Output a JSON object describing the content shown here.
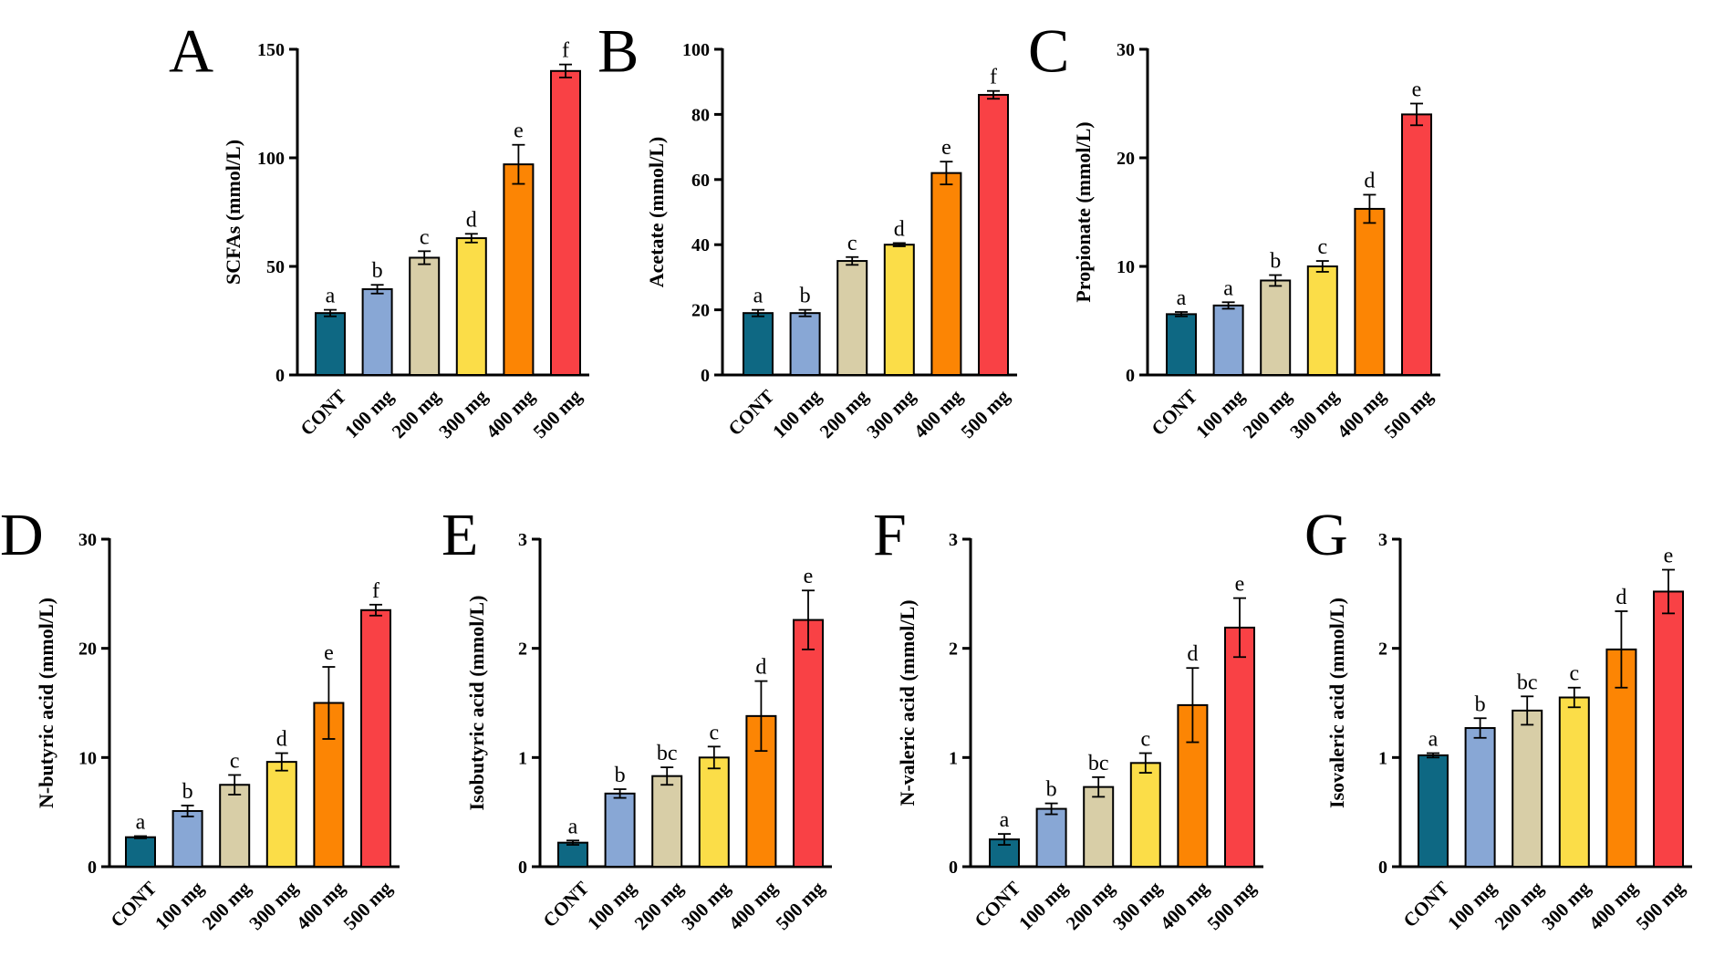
{
  "categories": [
    "CONT",
    "100 mg",
    "200 mg",
    "300 mg",
    "400 mg",
    "500 mg"
  ],
  "colors": [
    "#0e6883",
    "#88a7d5",
    "#d8cea7",
    "#fbdd48",
    "#fc8504",
    "#f94145"
  ],
  "chart_data": [
    {
      "panel": "A",
      "type": "bar",
      "ylabel": "SCFAs (mmol/L)",
      "ylim": [
        0,
        150
      ],
      "yticks": [
        0,
        50,
        100,
        150
      ],
      "categories": [
        "CONT",
        "100 mg",
        "200 mg",
        "300 mg",
        "400 mg",
        "500 mg"
      ],
      "values": [
        28.5,
        39.5,
        54,
        63,
        97,
        140
      ],
      "errors": [
        1.5,
        2,
        3,
        2,
        9,
        3
      ],
      "letters": [
        "a",
        "b",
        "c",
        "d",
        "e",
        "f"
      ]
    },
    {
      "panel": "B",
      "type": "bar",
      "ylabel": "Acetate (mmol/L)",
      "ylim": [
        0,
        100
      ],
      "yticks": [
        0,
        20,
        40,
        60,
        80,
        100
      ],
      "categories": [
        "CONT",
        "100 mg",
        "200 mg",
        "300 mg",
        "400 mg",
        "500 mg"
      ],
      "values": [
        19,
        19,
        35,
        40,
        62,
        86
      ],
      "errors": [
        1,
        1,
        1.2,
        0.5,
        3.5,
        1.2
      ],
      "letters": [
        "a",
        "b",
        "c",
        "d",
        "e",
        "f"
      ]
    },
    {
      "panel": "C",
      "type": "bar",
      "ylabel": "Propionate (mmol/L)",
      "ylim": [
        0,
        30
      ],
      "yticks": [
        0,
        10,
        20,
        30
      ],
      "categories": [
        "CONT",
        "100 mg",
        "200 mg",
        "300 mg",
        "400 mg",
        "500 mg"
      ],
      "values": [
        5.6,
        6.4,
        8.7,
        10,
        15.3,
        24
      ],
      "errors": [
        0.2,
        0.3,
        0.5,
        0.5,
        1.3,
        1
      ],
      "letters": [
        "a",
        "a",
        "b",
        "c",
        "d",
        "e"
      ]
    },
    {
      "panel": "D",
      "type": "bar",
      "ylabel": "N-butyric acid (mmol/L)",
      "ylim": [
        0,
        30
      ],
      "yticks": [
        0,
        10,
        20,
        30
      ],
      "categories": [
        "CONT",
        "100 mg",
        "200 mg",
        "300 mg",
        "400 mg",
        "500 mg"
      ],
      "values": [
        2.7,
        5.1,
        7.5,
        9.6,
        15,
        23.5
      ],
      "errors": [
        0.1,
        0.5,
        0.9,
        0.8,
        3.3,
        0.5
      ],
      "letters": [
        "a",
        "b",
        "c",
        "d",
        "e",
        "f"
      ]
    },
    {
      "panel": "E",
      "type": "bar",
      "ylabel": "Isobutyric acid (mmol/L)",
      "ylim": [
        0,
        3
      ],
      "yticks": [
        0,
        1,
        2,
        3
      ],
      "categories": [
        "CONT",
        "100 mg",
        "200 mg",
        "300 mg",
        "400 mg",
        "500 mg"
      ],
      "values": [
        0.22,
        0.67,
        0.83,
        1.0,
        1.38,
        2.26
      ],
      "errors": [
        0.02,
        0.04,
        0.08,
        0.1,
        0.32,
        0.27
      ],
      "letters": [
        "a",
        "b",
        "bc",
        "c",
        "d",
        "e"
      ]
    },
    {
      "panel": "F",
      "type": "bar",
      "ylabel": "N-valeric acid (mmol/L)",
      "ylim": [
        0,
        3
      ],
      "yticks": [
        0,
        1,
        2,
        3
      ],
      "categories": [
        "CONT",
        "100 mg",
        "200 mg",
        "300 mg",
        "400 mg",
        "500 mg"
      ],
      "values": [
        0.25,
        0.53,
        0.73,
        0.95,
        1.48,
        2.19
      ],
      "errors": [
        0.05,
        0.05,
        0.09,
        0.09,
        0.34,
        0.27
      ],
      "letters": [
        "a",
        "b",
        "bc",
        "c",
        "d",
        "e"
      ]
    },
    {
      "panel": "G",
      "type": "bar",
      "ylabel": "Isovaleric acid (mmol/L)",
      "ylim": [
        0,
        3
      ],
      "yticks": [
        0,
        1,
        2,
        3
      ],
      "categories": [
        "CONT",
        "100 mg",
        "200 mg",
        "300 mg",
        "400 mg",
        "500 mg"
      ],
      "values": [
        1.02,
        1.27,
        1.43,
        1.55,
        1.99,
        2.52
      ],
      "errors": [
        0.02,
        0.09,
        0.13,
        0.09,
        0.35,
        0.2
      ],
      "letters": [
        "a",
        "b",
        "bc",
        "c",
        "d",
        "e"
      ]
    }
  ]
}
